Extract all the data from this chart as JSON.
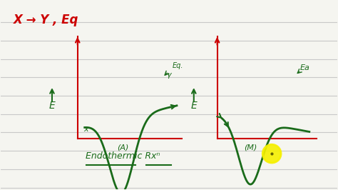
{
  "bg_color": "#f5f5f0",
  "line_color_dark_red": "#cc0000",
  "line_color_green": "#1a6b1a",
  "notebook_line_color": "#c8c8c8",
  "notebook_line_count": 10,
  "title_text": "X → Y , Eq",
  "label_endothermic": "Endothermic Rxⁿ",
  "label_A": "(A)",
  "label_M": "(M)",
  "label_Eq_dot": "Eq.",
  "label_gamma": "γ",
  "label_Ea": "Ea",
  "label_E_left": "E",
  "label_E_right": "E",
  "label_x": "x"
}
